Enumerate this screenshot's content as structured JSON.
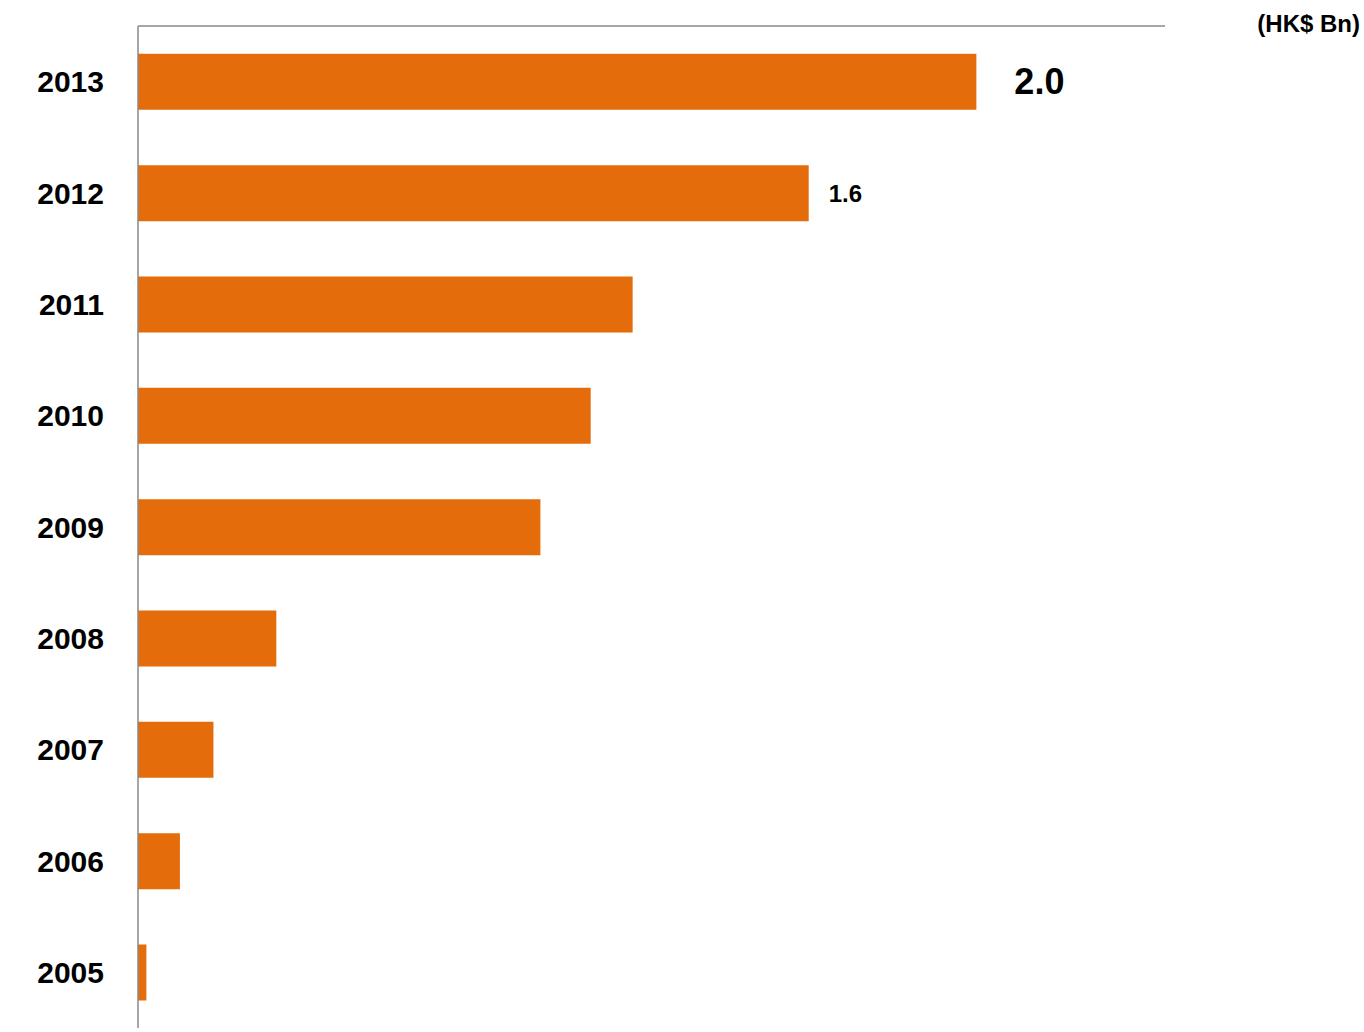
{
  "chart_data": {
    "type": "bar",
    "orientation": "horizontal",
    "xlabel": "(HK$ Bn)",
    "categories": [
      "2013",
      "2012",
      "2011",
      "2010",
      "2009",
      "2008",
      "2007",
      "2006",
      "2005"
    ],
    "values": [
      2.0,
      1.6,
      1.18,
      1.08,
      0.96,
      0.33,
      0.18,
      0.1,
      0.02
    ],
    "value_labels": [
      "2.0",
      "1.6",
      null,
      null,
      null,
      null,
      null,
      null,
      null
    ],
    "data_labels": true,
    "color": "#e46c0a",
    "xlim": [
      0,
      2.45
    ],
    "grid": false,
    "tick_labels": "y"
  }
}
